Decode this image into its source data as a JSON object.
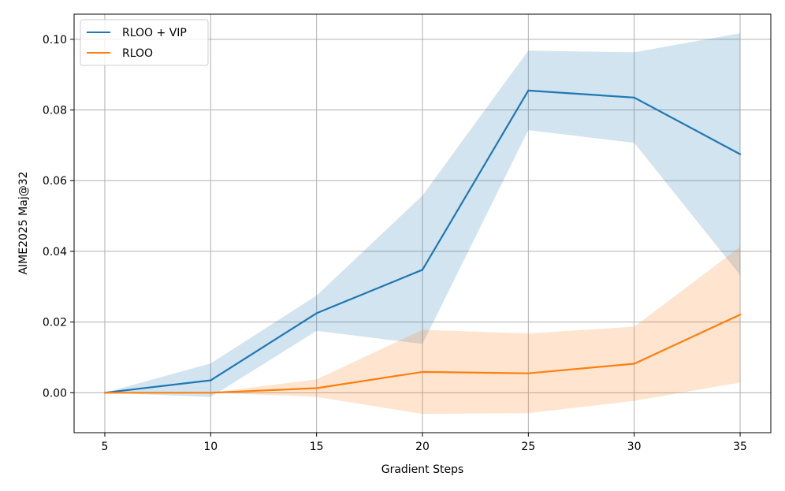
{
  "chart_data": {
    "type": "line",
    "title": "",
    "xlabel": "Gradient Steps",
    "ylabel": "AIME2025 Maj@32",
    "x": [
      5,
      10,
      15,
      20,
      25,
      30,
      35
    ],
    "xticks": [
      "5",
      "10",
      "15",
      "20",
      "25",
      "30",
      "35"
    ],
    "yticks": [
      "0.00",
      "0.02",
      "0.04",
      "0.06",
      "0.08",
      "0.10"
    ],
    "xlim": [
      3.55,
      36.45
    ],
    "ylim": [
      -0.0113,
      0.1071
    ],
    "grid": true,
    "legend_position": "top-left",
    "series": [
      {
        "name": "RLOO + VIP",
        "color": "#1f77b4",
        "values": [
          0.0,
          0.0035,
          0.0225,
          0.0348,
          0.0855,
          0.0835,
          0.0675
        ],
        "upper": [
          0.0,
          0.0083,
          0.0275,
          0.0558,
          0.0968,
          0.0963,
          0.1017
        ],
        "lower": [
          0.0,
          -0.0012,
          0.0175,
          0.0138,
          0.0743,
          0.0707,
          0.0333
        ]
      },
      {
        "name": "RLOO",
        "color": "#ff7f0e",
        "values": [
          0.0,
          0.0,
          0.0013,
          0.0059,
          0.0055,
          0.0082,
          0.0221
        ],
        "upper": [
          0.0,
          0.0,
          0.0038,
          0.0178,
          0.0168,
          0.0187,
          0.0413
        ],
        "lower": [
          0.0,
          0.0,
          -0.0012,
          -0.006,
          -0.0058,
          -0.0023,
          0.0029
        ]
      }
    ]
  }
}
